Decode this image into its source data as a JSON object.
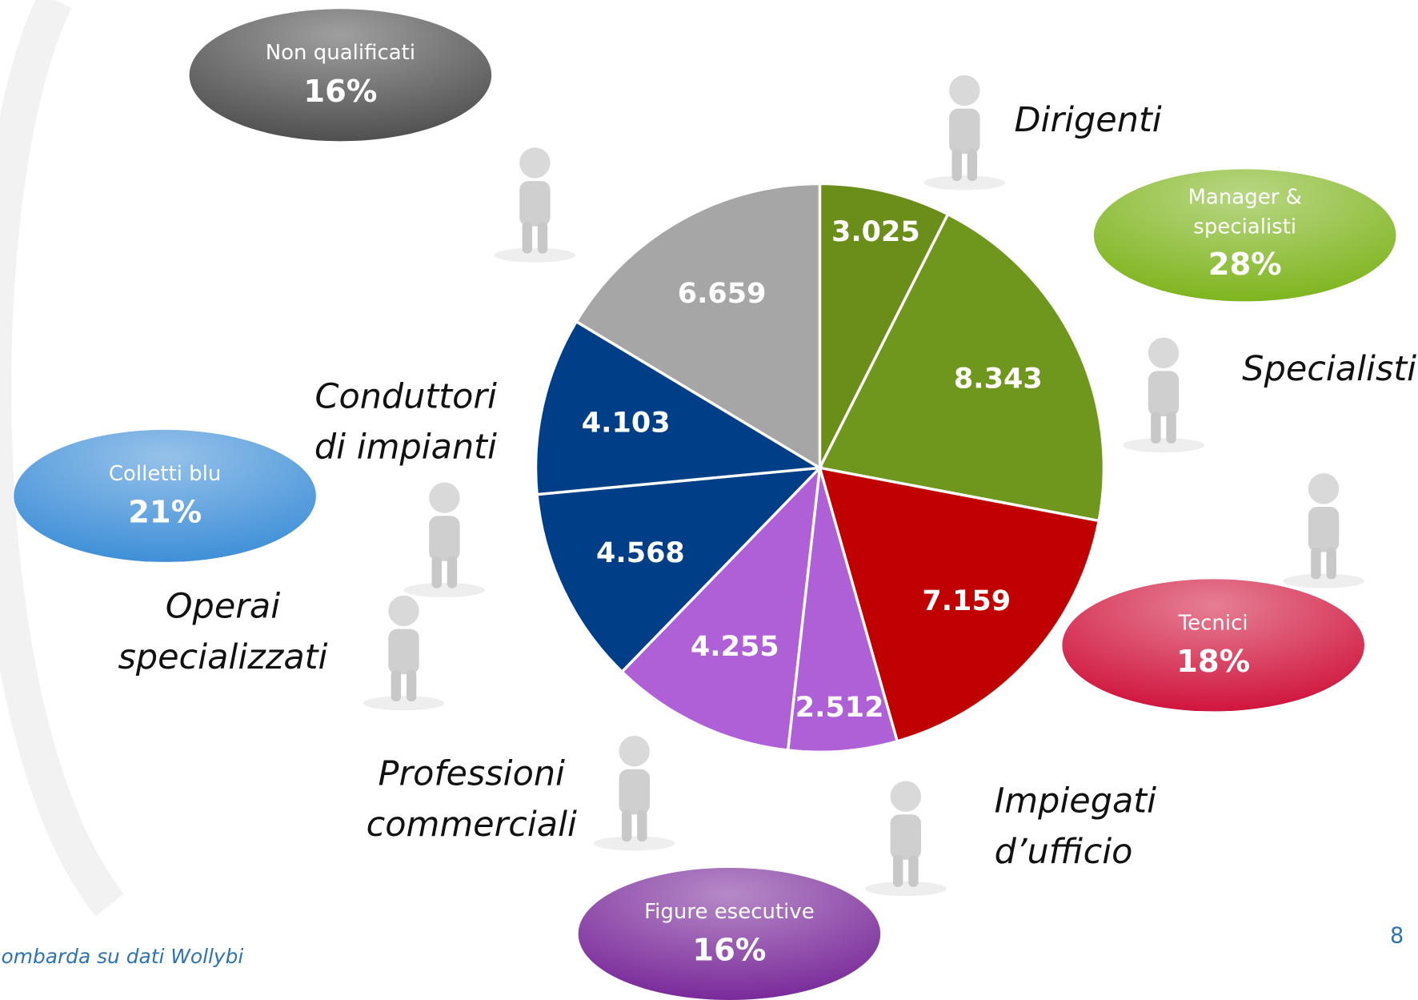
{
  "chart_data": {
    "type": "pie",
    "categories": [
      "Dirigenti",
      "Specialisti",
      null,
      "Impiegati d’ufficio",
      "Professioni commerciali",
      "Operai specializzati",
      "Conduttori di impianti",
      null
    ],
    "values": [
      3025,
      8343,
      7159,
      2512,
      4255,
      4568,
      4103,
      6659
    ],
    "value_labels": [
      "3.025",
      "8.343",
      "7.159",
      "2.512",
      "4.255",
      "4.568",
      "4.103",
      "6.659"
    ],
    "colors": [
      "#6b8e1a",
      "#6f961d",
      "#c00000",
      "#b060d6",
      "#b060d6",
      "#003f87",
      "#003f87",
      "#a6a6a6"
    ],
    "groups": [
      {
        "name": "Manager & specialisti",
        "value": 28,
        "value_label": "28%",
        "color": "#7fb51f"
      },
      {
        "name": "Tecnici",
        "value": 18,
        "value_label": "18%",
        "color": "#d0153d"
      },
      {
        "name": "Figure esecutive",
        "value": 16,
        "value_label": "16%",
        "color": "#7a2a9a"
      },
      {
        "name": "Colletti blu",
        "value": 21,
        "value_label": "21%",
        "color": "#3f8fd8"
      },
      {
        "name": "Non qualificati",
        "value": 16,
        "value_label": "16%",
        "color": "#505050"
      }
    ],
    "source": "ombarda su dati Wollybi",
    "page_number": "8"
  }
}
